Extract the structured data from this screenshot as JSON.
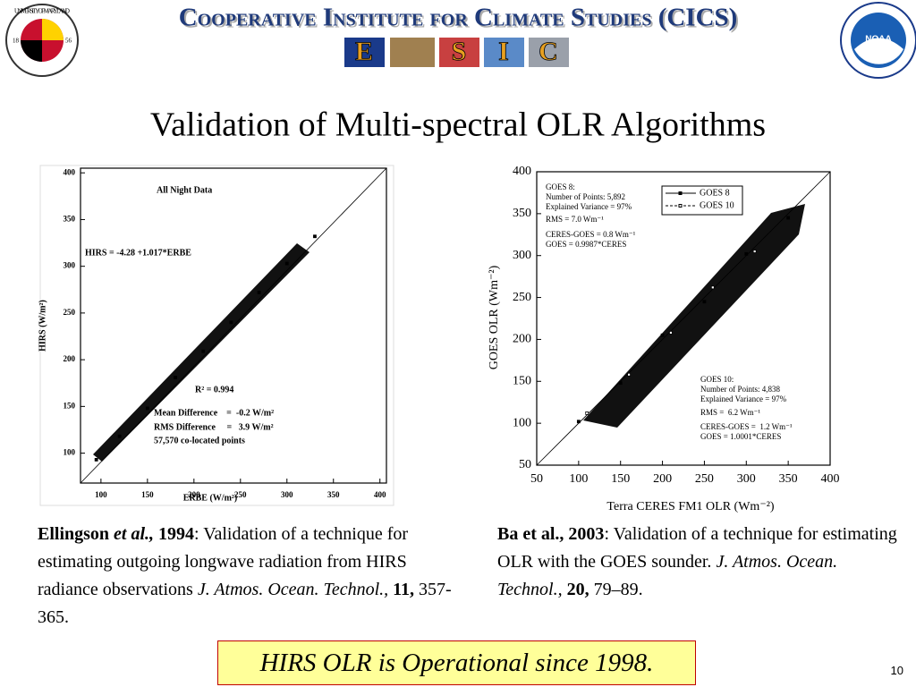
{
  "header": {
    "title": "Cooperative Institute for Climate Studies (CICS)",
    "esic": [
      "E",
      "S",
      "I",
      "C"
    ],
    "left_logo": {
      "name": "UNIVERSITY OF MARYLAND",
      "years": [
        "18",
        "56"
      ]
    },
    "right_logo": {
      "name": "NOAA"
    }
  },
  "slide_title": "Validation of Multi-spectral OLR Algorithms",
  "chart_data": [
    {
      "type": "scatter",
      "xlabel": "ERBE (W/m²)",
      "ylabel": "HIRS (W/m²)",
      "xlim": [
        78,
        407
      ],
      "ylim": [
        68,
        405
      ],
      "xticks": [
        100,
        150,
        200,
        250,
        300,
        350,
        400
      ],
      "yticks": [
        100,
        150,
        200,
        250,
        300,
        350,
        400
      ],
      "series": [
        {
          "name": "All Night Data",
          "color": "#000000",
          "x": [
            95,
            120,
            150,
            180,
            210,
            240,
            270,
            300,
            330
          ],
          "values": [
            93,
            118,
            148,
            181,
            209,
            240,
            272,
            303,
            332
          ]
        }
      ],
      "annotations": [
        "HIRS = -4.28 +1.017*ERBE",
        "R² = 0.994",
        "Mean Difference    =  -0.2 W/m²",
        "RMS Difference     =   3.9 W/m²",
        "57,570 co-located points"
      ]
    },
    {
      "type": "scatter",
      "xlabel": "Terra CERES FM1 OLR (Wm⁻²)",
      "ylabel": "GOES OLR (Wm⁻²)",
      "xlim": [
        50,
        400
      ],
      "ylim": [
        50,
        400
      ],
      "xticks": [
        50,
        100,
        150,
        200,
        250,
        300,
        350,
        400
      ],
      "yticks": [
        50,
        100,
        150,
        200,
        250,
        300,
        350,
        400
      ],
      "series": [
        {
          "name": "GOES 8",
          "color": "#000000",
          "x": [
            100,
            150,
            200,
            250,
            300,
            350
          ],
          "values": [
            102,
            148,
            205,
            245,
            302,
            345
          ]
        },
        {
          "name": "GOES 10",
          "color": "#000000",
          "x": [
            110,
            160,
            210,
            260,
            310
          ],
          "values": [
            112,
            158,
            208,
            262,
            305
          ]
        }
      ],
      "annotations": [
        "GOES 8:",
        "Number of Points: 5,892",
        "Explained Variance = 97%",
        "RMS = 7.0 Wm⁻¹",
        "CERES-GOES = 0.8 Wm⁻¹",
        "GOES = 0.9987*CERES",
        "GOES 10:",
        "Number of Points: 4,838",
        "Explained Variance = 97%",
        "RMS =  6.2 Wm⁻¹",
        "CERES-GOES =  1.2 Wm⁻¹",
        "GOES = 1.0001*CERES"
      ]
    }
  ],
  "captions": [
    {
      "segments": [
        {
          "text": "Ellingson ",
          "style": "bold"
        },
        {
          "text": "et al.,",
          "style": "bold-italic"
        },
        {
          "text": " 1994",
          "style": "bold"
        },
        {
          "text": ": Validation of a technique for estimating outgoing longwave radiation from HIRS radiance observations ",
          "style": "normal"
        },
        {
          "text": "J. Atmos. Ocean. Technol.,",
          "style": "italic"
        },
        {
          "text": " 11,",
          "style": "bold"
        },
        {
          "text": " 357-365.",
          "style": "normal"
        }
      ]
    },
    {
      "segments": [
        {
          "text": "Ba et al., 2003",
          "style": "bold"
        },
        {
          "text": ": Validation of a technique for estimating OLR with the GOES sounder. ",
          "style": "normal"
        },
        {
          "text": "J. Atmos. Ocean. Technol.,",
          "style": "italic"
        },
        {
          "text": " 20,",
          "style": "bold"
        },
        {
          "text": " 79–89.",
          "style": "normal"
        }
      ]
    }
  ],
  "footer": "HIRS OLR is Operational since 1998.",
  "page_number": "10"
}
